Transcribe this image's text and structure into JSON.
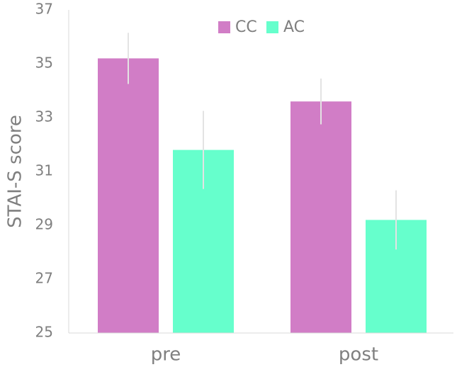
{
  "chart_data": {
    "type": "bar",
    "ylabel": "STAI-S score",
    "categories": [
      "pre",
      "post"
    ],
    "series": [
      {
        "name": "CC",
        "color": "#d17dc6",
        "values": [
          35.2,
          33.6
        ],
        "errors": [
          0.95,
          0.85
        ]
      },
      {
        "name": "AC",
        "color": "#66ffcc",
        "values": [
          31.8,
          29.2
        ],
        "errors": [
          1.45,
          1.1
        ]
      }
    ],
    "ylim": [
      25,
      37
    ],
    "yticks": [
      25,
      27,
      29,
      31,
      33,
      35,
      37
    ],
    "grid": false,
    "legend": "top"
  }
}
